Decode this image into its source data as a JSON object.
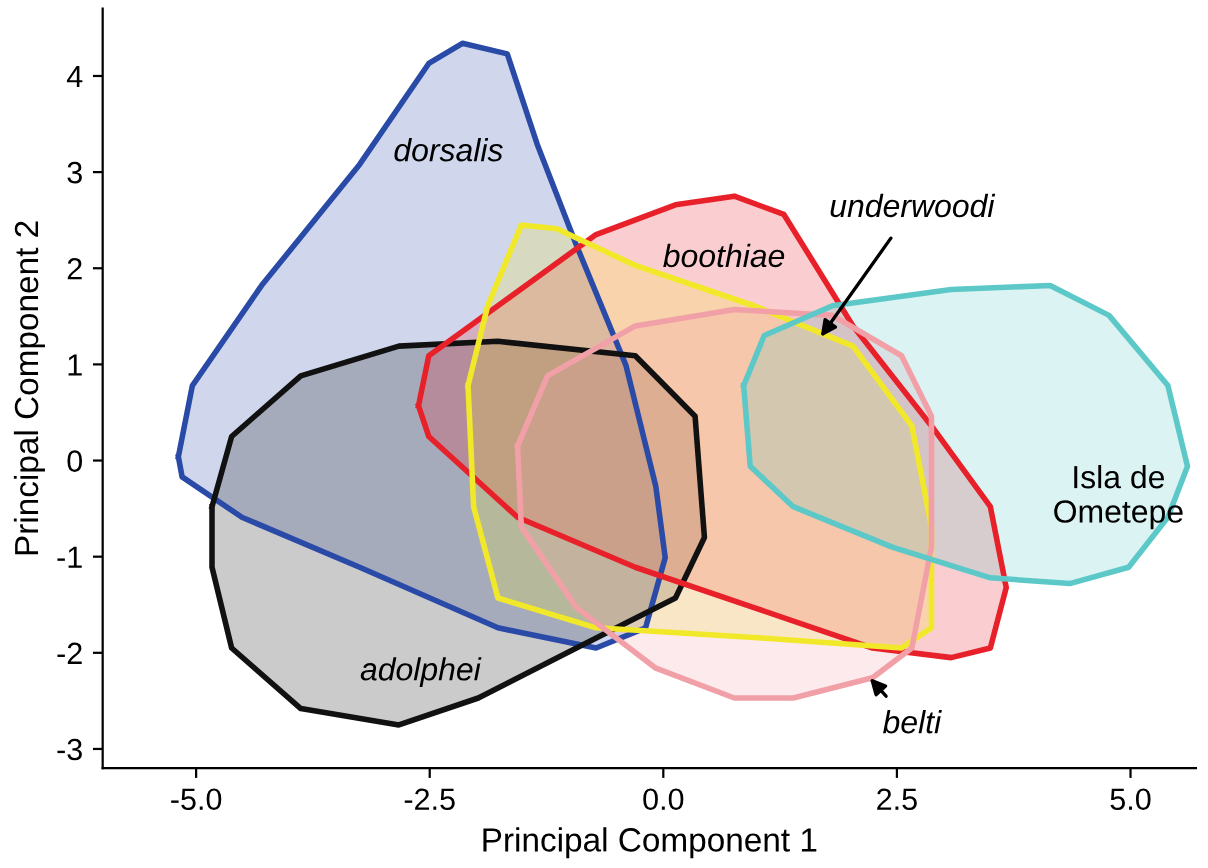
{
  "chart_data": {
    "type": "area",
    "xlabel": "Principal Component 1",
    "ylabel": "Principal Component 2",
    "xlim": [
      -6.0,
      5.7
    ],
    "ylim": [
      -3.2,
      4.7
    ],
    "xticks": [
      {
        "value": -5,
        "label": "-5.0"
      },
      {
        "value": -2.5,
        "label": "-2.5"
      },
      {
        "value": 0,
        "label": "0.0"
      },
      {
        "value": 2.5,
        "label": "2.5"
      },
      {
        "value": 5,
        "label": "5.0"
      }
    ],
    "yticks": [
      {
        "value": -3,
        "label": "-3"
      },
      {
        "value": -2,
        "label": "-2"
      },
      {
        "value": -1,
        "label": "-1"
      },
      0,
      1,
      2,
      3,
      4
    ],
    "grid": false,
    "series": [
      {
        "color": "#2a4aa8",
        "x": [
          -5.19,
          -5.04,
          -4.3,
          -3.25,
          -2.51,
          -2.15,
          -1.67,
          -1.35,
          -0.93,
          -0.4,
          -0.08,
          0.02,
          -0.19,
          -0.72,
          -1.77,
          -3.25,
          -4.51,
          -5.15
        ],
        "values": [
          0.04,
          0.78,
          1.82,
          3.08,
          4.13,
          4.34,
          4.23,
          3.29,
          2.24,
          0.99,
          -0.27,
          -1.01,
          -1.74,
          -1.95,
          -1.74,
          -1.11,
          -0.59,
          -0.17
        ]
      },
      {
        "color": "#111111",
        "x": [
          -4.83,
          -4.62,
          -3.88,
          -2.83,
          -1.77,
          -0.3,
          0.34,
          0.44,
          0.13,
          -0.93,
          -1.98,
          -2.83,
          -3.88,
          -4.62,
          -4.83
        ],
        "values": [
          -0.48,
          0.25,
          0.88,
          1.19,
          1.24,
          1.09,
          0.46,
          -0.8,
          -1.43,
          -1.95,
          -2.47,
          -2.75,
          -2.58,
          -1.95,
          -1.11
        ]
      },
      {
        "color": "#e8202a",
        "x": [
          -2.62,
          -2.51,
          -1.77,
          -0.72,
          0.13,
          0.76,
          1.29,
          2.03,
          2.87,
          3.5,
          3.67,
          3.5,
          3.08,
          2.24,
          0.97,
          -0.3,
          -1.56,
          -2.51
        ],
        "values": [
          0.57,
          1.09,
          1.61,
          2.35,
          2.66,
          2.75,
          2.56,
          1.4,
          0.36,
          -0.48,
          -1.32,
          -1.95,
          -2.05,
          -1.95,
          -1.53,
          -1.11,
          -0.59,
          0.25
        ]
      },
      {
        "color": "#f2e82a",
        "x": [
          -2.09,
          -1.88,
          -1.52,
          -1.14,
          -0.3,
          0.97,
          2.03,
          2.66,
          2.87,
          2.87,
          2.55,
          0.97,
          -0.72,
          -1.77,
          -2.03
        ],
        "values": [
          0.78,
          1.61,
          2.45,
          2.41,
          2.03,
          1.61,
          1.19,
          0.36,
          -0.69,
          -1.74,
          -1.95,
          -1.84,
          -1.74,
          -1.43,
          -0.48
        ]
      },
      {
        "color": "#f2a0a8",
        "x": [
          -1.56,
          -1.24,
          -0.3,
          0.76,
          1.81,
          2.55,
          2.87,
          2.87,
          2.66,
          2.24,
          1.39,
          0.76,
          -0.08,
          -0.93,
          -1.52
        ],
        "values": [
          0.15,
          0.88,
          1.4,
          1.57,
          1.51,
          1.09,
          0.46,
          -0.9,
          -1.95,
          -2.26,
          -2.47,
          -2.47,
          -2.16,
          -1.53,
          -0.69
        ]
      },
      {
        "color": "#5cc8c8",
        "x": [
          0.86,
          1.08,
          1.81,
          3.08,
          4.14,
          4.77,
          5.4,
          5.61,
          5.4,
          4.98,
          4.35,
          3.5,
          2.45,
          1.39,
          0.93
        ],
        "values": [
          0.78,
          1.3,
          1.61,
          1.78,
          1.82,
          1.51,
          0.78,
          -0.06,
          -0.59,
          -1.11,
          -1.28,
          -1.22,
          -0.9,
          -0.48,
          -0.06
        ]
      }
    ],
    "annotations": [
      "dorsalis",
      "boothiae",
      {
        "text": "underwoodi",
        "x": 1.65,
        "y": 1.24
      },
      "adolphei",
      {
        "text": "belti",
        "x": 2.17,
        "y": -2.22
      },
      "Isla de Ometepe"
    ]
  }
}
